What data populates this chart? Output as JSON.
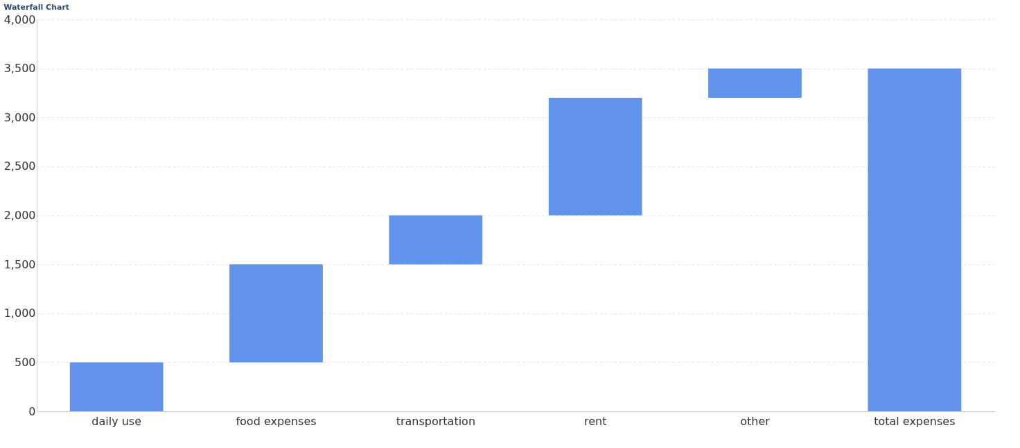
{
  "chart_data": {
    "type": "bar",
    "title": "Waterfall Chart",
    "categories": [
      "daily use",
      "food expenses",
      "transportation",
      "rent",
      "other",
      "total expenses"
    ],
    "values": [
      500,
      1000,
      500,
      1200,
      300,
      3500
    ],
    "base": [
      0,
      500,
      1500,
      2000,
      3200,
      0
    ],
    "color": "#6193ec",
    "ylim": [
      0,
      4000
    ],
    "yticks": [
      0,
      {
        "value": 500,
        "label": "500"
      },
      {
        "value": 1000,
        "label": "1,000"
      },
      {
        "value": 1500,
        "label": "1,500"
      },
      {
        "value": 2000,
        "label": "2,000"
      },
      {
        "value": 2500,
        "label": "2,500"
      },
      {
        "value": 3000,
        "label": "3,000"
      },
      {
        "value": 3500,
        "label": "3,500"
      },
      {
        "value": 4000,
        "label": "4,000"
      }
    ],
    "grid": "y"
  }
}
